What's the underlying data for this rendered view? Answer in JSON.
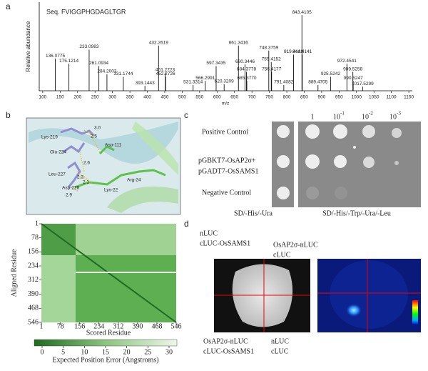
{
  "panel_a": {
    "letter": "a",
    "sequence": "Seq. FVIGGPHGDAGLTGR",
    "y_label": "Relative abundance",
    "x_label": "m/z",
    "xlim": [
      90,
      1160
    ],
    "ylim": [
      0,
      100
    ],
    "xticks": [
      100,
      150,
      200,
      250,
      300,
      350,
      400,
      450,
      500,
      550,
      600,
      650,
      700,
      750,
      800,
      850,
      900,
      950,
      1000,
      1050,
      1100,
      1150
    ],
    "peaks": [
      {
        "mz": 136.0775,
        "label": "136.0775",
        "height": 39
      },
      {
        "mz": 175.1214,
        "label": "175.1214",
        "height": 33
      },
      {
        "mz": 233.0983,
        "label": "233.0983",
        "height": 50
      },
      {
        "mz": 261.0934,
        "label": "261.0934",
        "height": 30
      },
      {
        "mz": 284.2003,
        "label": "284.2003",
        "height": 20
      },
      {
        "mz": 331.1744,
        "label": "331.1744",
        "height": 17
      },
      {
        "mz": 393.1443,
        "label": "393.1443",
        "height": 6
      },
      {
        "mz": 432.2619,
        "label": "432.2619",
        "height": 55
      },
      {
        "mz": 451.2723,
        "label": "451.2723",
        "height": 22
      },
      {
        "mz": 452.2726,
        "label": "452.2726",
        "height": 17
      },
      {
        "mz": 531.3314,
        "label": "531.3314",
        "height": 7
      },
      {
        "mz": 566.2991,
        "label": "566.2991",
        "height": 12
      },
      {
        "mz": 597.3435,
        "label": "597.3435",
        "height": 30
      },
      {
        "mz": 620.3209,
        "label": "620.3209",
        "height": 8
      },
      {
        "mz": 661.3416,
        "label": "661.3416",
        "height": 55
      },
      {
        "mz": 680.3446,
        "label": "680.3446",
        "height": 32
      },
      {
        "mz": 684.3778,
        "label": "684.3778",
        "height": 23
      },
      {
        "mz": 685.377,
        "label": "685.3770",
        "height": 12
      },
      {
        "mz": 748.3759,
        "label": "748.3759",
        "height": 49
      },
      {
        "mz": 755.4152,
        "label": "755.4152",
        "height": 35
      },
      {
        "mz": 756.4177,
        "label": "756.4177",
        "height": 23
      },
      {
        "mz": 791.4082,
        "label": "791.4082",
        "height": 7
      },
      {
        "mz": 819.4128,
        "label": "819.4128",
        "height": 44
      },
      {
        "mz": 843.4105,
        "label": "843.4105",
        "height": 92
      },
      {
        "mz": 844.4141,
        "label": "844.4141",
        "height": 44
      },
      {
        "mz": 889.4705,
        "label": "889.4705",
        "height": 7
      },
      {
        "mz": 925.5242,
        "label": "925.5242",
        "height": 17
      },
      {
        "mz": 972.4541,
        "label": "972.4541",
        "height": 33
      },
      {
        "mz": 989.5258,
        "label": "989.5258",
        "height": 23
      },
      {
        "mz": 990.5247,
        "label": "990.5247",
        "height": 12
      },
      {
        "mz": 1017.5299,
        "label": "1017.5299",
        "height": 5
      }
    ]
  },
  "panel_b": {
    "letter": "b",
    "residues": [
      "Lys-219",
      "Asp-111",
      "Glu-224",
      "Leu-227",
      "Asp-228",
      "Lys-22",
      "Arg-24"
    ],
    "distances": [
      "3.0",
      "2.5",
      "2.6",
      "2.3",
      "2.1",
      "2.9"
    ],
    "heatmap_y_label": "Aligned Residue",
    "heatmap_x_label": "Scored Residue",
    "heatmap_lim": [
      1,
      546
    ],
    "heatmap_ticks": [
      1,
      78,
      156,
      234,
      312,
      390,
      468,
      546
    ],
    "colorbar_lim": [
      0,
      30
    ],
    "colorbar_ticks": [
      0,
      5,
      10,
      15,
      20,
      25,
      30
    ],
    "colorbar_label": "Expected Position Error (Angstroms)"
  },
  "panel_c": {
    "letter": "c",
    "dilutions": [
      {
        "base": "1",
        "exp": ""
      },
      {
        "base": "10",
        "exp": "-1"
      },
      {
        "base": "10",
        "exp": "-2"
      },
      {
        "base": "10",
        "exp": "-3"
      }
    ],
    "rows": [
      [
        "Positive Control"
      ],
      [
        "pGBKT7-OsAP2σ+",
        "pGADT7-OsSAMS1"
      ],
      [
        "Negative Control"
      ]
    ],
    "media": [
      "SD/-His/-Ura",
      "SD/-His/-Trp/-Ura/-Leu"
    ]
  },
  "panel_d": {
    "letter": "d",
    "top_left": [
      "nLUC",
      "cLUC-OsSAMS1"
    ],
    "top_right": [
      "OsAP2σ-nLUC",
      "cLUC"
    ],
    "bottom_left": [
      "OsAP2σ-nLUC",
      "cLUC-OsSAMS1"
    ],
    "bottom_right": [
      "nLUC",
      "cLUC"
    ]
  }
}
